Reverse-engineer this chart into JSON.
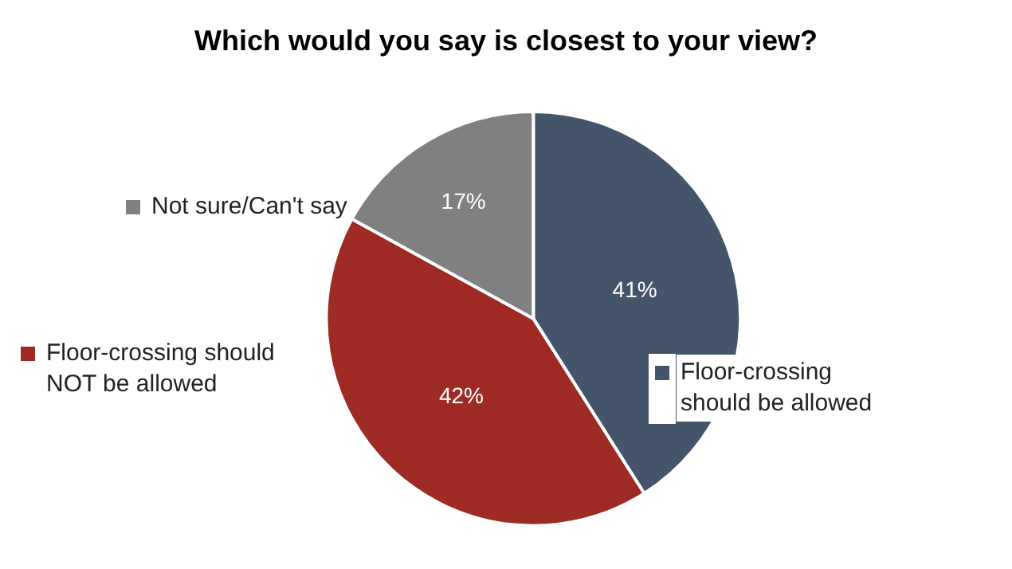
{
  "chart_data": {
    "type": "pie",
    "title": "Which would you say is closest to your view?",
    "categories": [
      "Floor-crossing should be allowed",
      "Floor-crossing should NOT be allowed",
      "Not sure/Can't say"
    ],
    "values": [
      41,
      42,
      17
    ],
    "colors": [
      "#44546a",
      "#9e2a24",
      "#808080"
    ],
    "value_labels": [
      "41%",
      "42%",
      "17%"
    ],
    "legend": "left"
  }
}
